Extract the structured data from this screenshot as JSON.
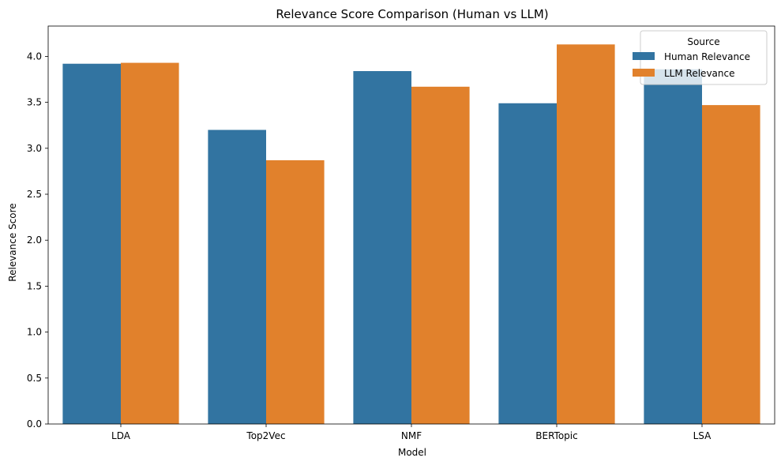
{
  "chart_data": {
    "type": "bar",
    "title": "Relevance Score Comparison (Human vs LLM)",
    "xlabel": "Model",
    "ylabel": "Relevance Score",
    "categories": [
      "LDA",
      "Top2Vec",
      "NMF",
      "BERTopic",
      "LSA"
    ],
    "series": [
      {
        "name": "Human Relevance",
        "color": "#3274a1",
        "values": [
          3.92,
          3.2,
          3.84,
          3.49,
          3.86
        ]
      },
      {
        "name": "LLM Relevance",
        "color": "#e1812c",
        "values": [
          3.93,
          2.87,
          3.67,
          4.13,
          3.47
        ]
      }
    ],
    "ylim": [
      0,
      4.33
    ],
    "yticks": [
      "0.0",
      "0.5",
      "1.0",
      "1.5",
      "2.0",
      "2.5",
      "3.0",
      "3.5",
      "4.0"
    ],
    "legend": {
      "title": "Source",
      "position": "top-right"
    },
    "grid": false
  }
}
